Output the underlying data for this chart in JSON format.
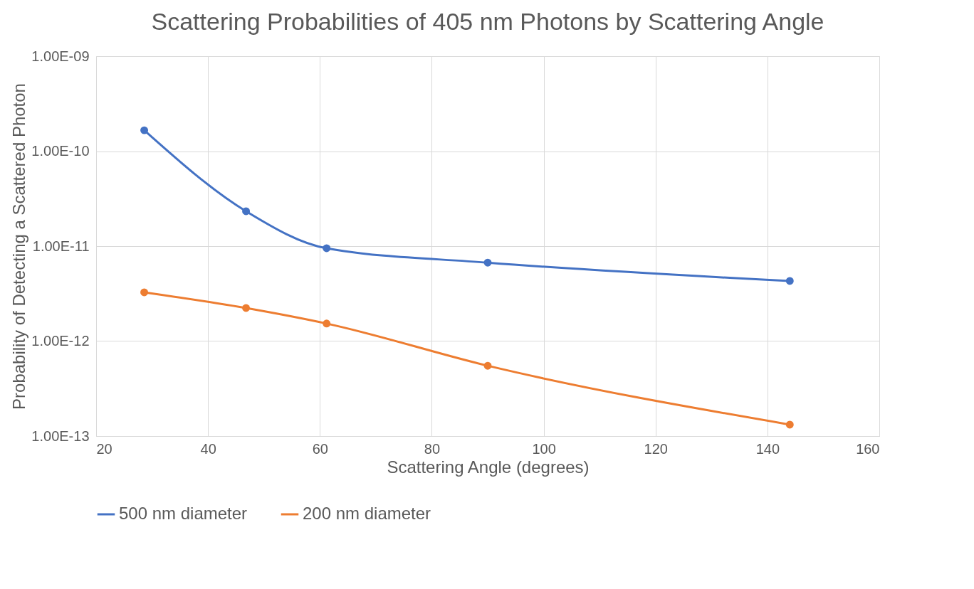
{
  "chart_data": {
    "type": "line",
    "title": "Scattering Probabilities of 405 nm Photons by Scattering Angle",
    "xlabel": "Scattering Angle (degrees)",
    "ylabel": "Probability of Detecting a Scattered Photon",
    "x": [
      28.6,
      46.8,
      61.2,
      90,
      144
    ],
    "series": [
      {
        "name": "500 nm diameter",
        "color": "#4472c4",
        "values": [
          1.66e-10,
          2.33e-11,
          9.5e-12,
          6.7e-12,
          4.3e-12
        ]
      },
      {
        "name": "200 nm diameter",
        "color": "#ed7d31",
        "values": [
          3.26e-12,
          2.23e-12,
          1.53e-12,
          5.5e-13,
          1.32e-13
        ]
      }
    ],
    "log": "y",
    "xlim": [
      20,
      160
    ],
    "xticks": [
      20,
      40,
      60,
      80,
      100,
      120,
      140,
      160
    ],
    "ylim": [
      1e-13,
      1e-09
    ],
    "yticks": [
      {
        "value": 1e-13,
        "label": "1.00E-13"
      },
      {
        "value": 1e-12,
        "label": "1.00E-12"
      },
      {
        "value": 1e-11,
        "label": "1.00E-11"
      },
      {
        "value": 1e-10,
        "label": "1.00E-10"
      },
      {
        "value": 1e-09,
        "label": "1.00E-09"
      }
    ],
    "grid": true,
    "legend": "bottom",
    "marker": "circle",
    "line_style": "solid"
  }
}
